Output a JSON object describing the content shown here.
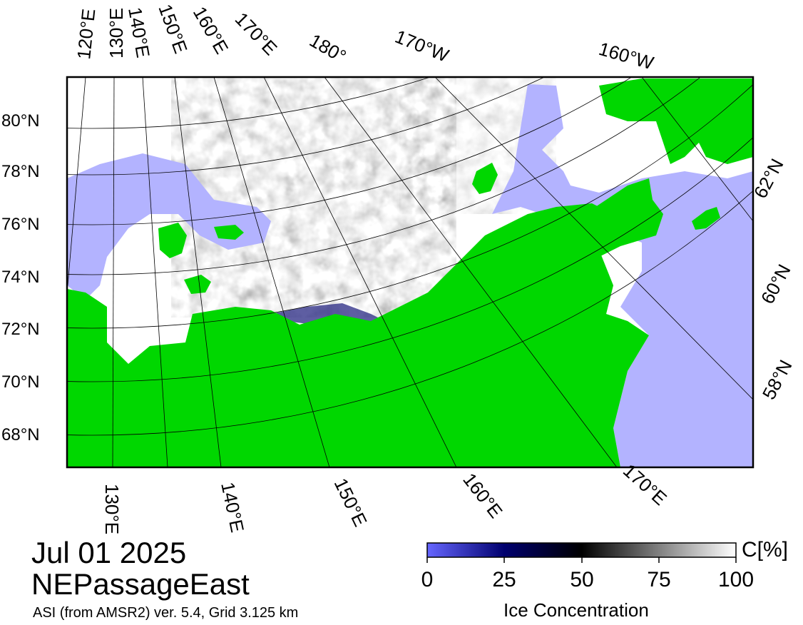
{
  "title": {
    "date": "Jul 01 2025",
    "region": "NEPassageEast",
    "source": "ASI (from AMSR2) ver. 5.4,  Grid 3.125 km"
  },
  "colors": {
    "land": "#00d700",
    "open_water": "#b3b3ff",
    "frame": "#000000"
  },
  "map": {
    "projection": "polar-stereographic",
    "latitude_labels": [
      "80°N",
      "78°N",
      "76°N",
      "74°N",
      "72°N",
      "70°N",
      "68°N"
    ],
    "top_longitude_labels": [
      "120°E",
      "130°E",
      "140°E",
      "150°E",
      "160°E",
      "170°E",
      "180°",
      "170°W",
      "160°W"
    ],
    "bottom_longitude_labels": [
      "130°E",
      "140°E",
      "150°E",
      "160°E",
      "170°E"
    ],
    "right_latitude_labels": [
      "62°N",
      "60°N",
      "58°N"
    ]
  },
  "colorbar": {
    "label": "Ice Concentration",
    "unit": "C[%]",
    "ticks": [
      "0",
      "25",
      "50",
      "75",
      "100"
    ],
    "colors": [
      "#6666ff",
      "#00006e",
      "#000000",
      "#808080",
      "#ffffff"
    ]
  }
}
